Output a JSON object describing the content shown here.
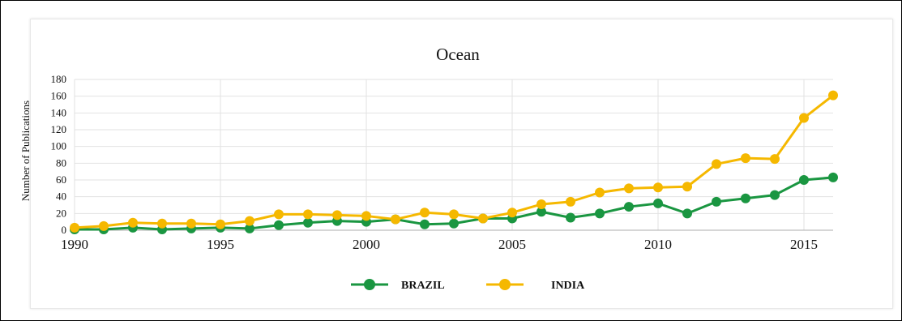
{
  "chart_data": {
    "type": "line",
    "title": "Ocean",
    "xlabel": "",
    "ylabel": "Number of Publications",
    "ylim": [
      0,
      180
    ],
    "xlim": [
      1990,
      2016
    ],
    "yticks": [
      "0",
      "20",
      "40",
      "60",
      "80",
      "100",
      "120",
      "140",
      "160",
      "180"
    ],
    "xticks": [
      "1990",
      "1995",
      "2000",
      "2005",
      "2010",
      "2015"
    ],
    "grid": true,
    "legend_position": "bottom-center",
    "x": [
      1990,
      1991,
      1992,
      1993,
      1994,
      1995,
      1996,
      1997,
      1998,
      1999,
      2000,
      2001,
      2002,
      2003,
      2004,
      2005,
      2006,
      2007,
      2008,
      2009,
      2010,
      2011,
      2012,
      2013,
      2014,
      2015,
      2016
    ],
    "series": [
      {
        "name": "BRAZIL",
        "color": "#1a9641",
        "values": [
          1,
          1,
          3,
          1,
          2,
          3,
          2,
          6,
          9,
          11,
          10,
          13,
          7,
          8,
          14,
          14,
          22,
          15,
          20,
          28,
          32,
          20,
          34,
          38,
          42,
          60,
          63
        ]
      },
      {
        "name": "INDIA",
        "color": "#f5b800",
        "values": [
          3,
          5,
          9,
          8,
          8,
          7,
          11,
          19,
          19,
          18,
          17,
          13,
          21,
          19,
          14,
          21,
          31,
          34,
          45,
          50,
          51,
          52,
          79,
          86,
          85,
          134,
          161
        ]
      }
    ]
  }
}
